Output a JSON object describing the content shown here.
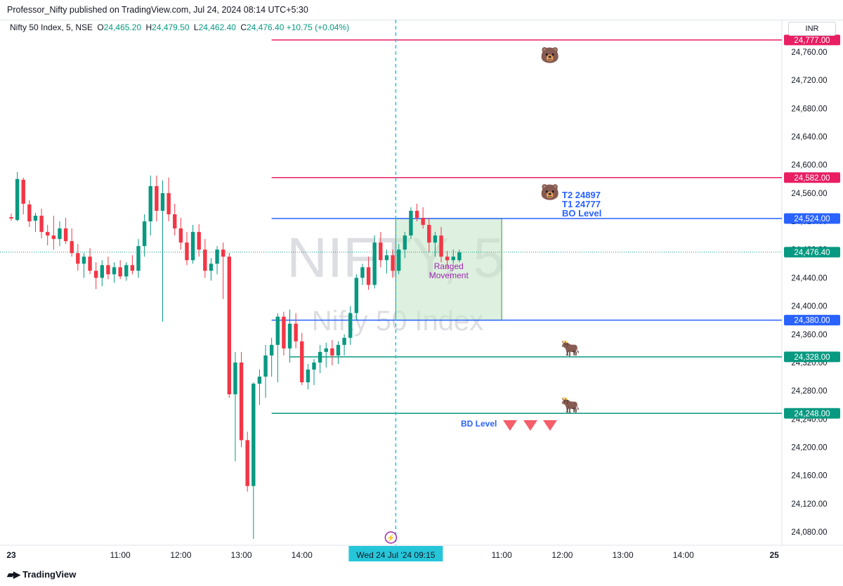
{
  "header": {
    "published": "Professor_Nifty published on TradingView.com, Jul 24, 2024 08:14 UTC+5:30"
  },
  "legend": {
    "symbol": "Nifty 50 Index, 5, NSE",
    "o_label": "O",
    "o": "24,465.20",
    "h_label": "H",
    "h": "24,479.50",
    "l_label": "L",
    "l": "24,462.40",
    "c_label": "C",
    "c": "24,476.40",
    "change": "+10.75 (+0.04%)"
  },
  "currency": "INR",
  "watermark": {
    "ticker": "NIFTY, 5",
    "name": "Nifty 50 Index"
  },
  "colors": {
    "up": "#089981",
    "down": "#f23645",
    "resistance": "#e91e63",
    "breakout": "#2962ff",
    "support": "#089981",
    "box_fill": "#c8e6c9",
    "box_border": "#4caf50",
    "crosshair": "#26c6da"
  },
  "chart_data": {
    "type": "candlestick",
    "ylim": [
      24060,
      24790
    ],
    "y_ticks": [
      24080,
      24120,
      24160,
      24200,
      24240,
      24280,
      24320,
      24360,
      24400,
      24440,
      24480,
      24520,
      24560,
      24600,
      24640,
      24680,
      24720,
      24760
    ],
    "y_tick_labels": [
      "24,080.00",
      "24,120.00",
      "24,160.00",
      "24,200.00",
      "24,240.00",
      "24,280.00",
      "24,320.00",
      "24,360.00",
      "24,400.00",
      "24,440.00",
      "24,480.00",
      "24,520.00",
      "24,560.00",
      "24,600.00",
      "24,640.00",
      "24,680.00",
      "24,720.00",
      "24,760.00"
    ],
    "x_labels": [
      {
        "label": "23",
        "bar": 0,
        "bold": true
      },
      {
        "label": "11:00",
        "bar": 18
      },
      {
        "label": "12:00",
        "bar": 28
      },
      {
        "label": "13:00",
        "bar": 38
      },
      {
        "label": "14:00",
        "bar": 48
      },
      {
        "label": "11:00",
        "bar": 81
      },
      {
        "label": "12:00",
        "bar": 91
      },
      {
        "label": "13:00",
        "bar": 101
      },
      {
        "label": "14:00",
        "bar": 111
      },
      {
        "label": "25",
        "bar": 126,
        "bold": true
      }
    ],
    "candles": [
      [
        24526,
        24531,
        24521,
        24524
      ],
      [
        24522,
        24590,
        24520,
        24580
      ],
      [
        24579,
        24582,
        24530,
        24545
      ],
      [
        24544,
        24550,
        24512,
        24520
      ],
      [
        24521,
        24532,
        24505,
        24528
      ],
      [
        24528,
        24538,
        24496,
        24505
      ],
      [
        24505,
        24515,
        24486,
        24500
      ],
      [
        24500,
        24528,
        24480,
        24495
      ],
      [
        24495,
        24520,
        24485,
        24510
      ],
      [
        24510,
        24525,
        24488,
        24492
      ],
      [
        24492,
        24510,
        24470,
        24475
      ],
      [
        24475,
        24488,
        24450,
        24460
      ],
      [
        24460,
        24475,
        24440,
        24470
      ],
      [
        24470,
        24482,
        24445,
        24450
      ],
      [
        24450,
        24462,
        24424,
        24440
      ],
      [
        24440,
        24465,
        24428,
        24458
      ],
      [
        24458,
        24470,
        24438,
        24445
      ],
      [
        24445,
        24462,
        24433,
        24455
      ],
      [
        24455,
        24465,
        24438,
        24442
      ],
      [
        24442,
        24462,
        24436,
        24458
      ],
      [
        24458,
        24472,
        24445,
        24450
      ],
      [
        24450,
        24495,
        24440,
        24485
      ],
      [
        24485,
        24530,
        24470,
        24520
      ],
      [
        24520,
        24585,
        24500,
        24570
      ],
      [
        24570,
        24585,
        24520,
        24535
      ],
      [
        24535,
        24578,
        24378,
        24560
      ],
      [
        24560,
        24582,
        24520,
        24530
      ],
      [
        24530,
        24545,
        24500,
        24510
      ],
      [
        24510,
        24525,
        24480,
        24490
      ],
      [
        24490,
        24505,
        24458,
        24465
      ],
      [
        24465,
        24515,
        24460,
        24505
      ],
      [
        24505,
        24516,
        24470,
        24480
      ],
      [
        24480,
        24495,
        24440,
        24450
      ],
      [
        24450,
        24468,
        24436,
        24460
      ],
      [
        24460,
        24485,
        24445,
        24480
      ],
      [
        24480,
        24490,
        24410,
        24470
      ],
      [
        24470,
        24475,
        24270,
        24275
      ],
      [
        24275,
        24335,
        24180,
        24320
      ],
      [
        24320,
        24335,
        24200,
        24210
      ],
      [
        24210,
        24222,
        24137,
        24145
      ],
      [
        24145,
        24292,
        24070,
        24290
      ],
      [
        24290,
        24310,
        24260,
        24300
      ],
      [
        24300,
        24345,
        24270,
        24330
      ],
      [
        24330,
        24355,
        24300,
        24345
      ],
      [
        24345,
        24390,
        24292,
        24385
      ],
      [
        24385,
        24392,
        24330,
        24340
      ],
      [
        24340,
        24395,
        24320,
        24375
      ],
      [
        24375,
        24390,
        24340,
        24350
      ],
      [
        24350,
        24362,
        24288,
        24292
      ],
      [
        24292,
        24318,
        24282,
        24310
      ],
      [
        24310,
        24325,
        24288,
        24320
      ],
      [
        24320,
        24345,
        24305,
        24335
      ],
      [
        24335,
        24348,
        24313,
        24340
      ],
      [
        24340,
        24352,
        24316,
        24330
      ],
      [
        24330,
        24350,
        24318,
        24345
      ],
      [
        24345,
        24360,
        24330,
        24355
      ],
      [
        24355,
        24400,
        24345,
        24390
      ],
      [
        24390,
        24445,
        24380,
        24440
      ],
      [
        24440,
        24460,
        24430,
        24455
      ],
      [
        24455,
        24470,
        24423,
        24430
      ],
      [
        24430,
        24500,
        24425,
        24490
      ],
      [
        24490,
        24505,
        24455,
        24465
      ],
      [
        24465,
        24480,
        24446,
        24472
      ],
      [
        24472,
        24480,
        24440,
        24450
      ],
      [
        24450,
        24488,
        24445,
        24480
      ],
      [
        24480,
        24505,
        24468,
        24500
      ],
      [
        24500,
        24540,
        24495,
        24535
      ],
      [
        24535,
        24545,
        24520,
        24525
      ],
      [
        24525,
        24540,
        24510,
        24515
      ],
      [
        24515,
        24525,
        24476,
        24490
      ],
      [
        24490,
        24505,
        24470,
        24500
      ],
      [
        24500,
        24512,
        24462,
        24470
      ],
      [
        24470,
        24478,
        24452,
        24465
      ],
      [
        24465,
        24480,
        24460,
        24470
      ],
      [
        24465,
        24480,
        24462,
        24476
      ]
    ],
    "current_price": 24476.4,
    "current_label": "24,476.40",
    "levels": [
      {
        "name": "top-resistance",
        "value": 24777,
        "label": "24,777.00",
        "color": "#e91e63",
        "start_bar": 43
      },
      {
        "name": "upper-resistance",
        "value": 24582,
        "label": "24,582.00",
        "color": "#e91e63",
        "start_bar": 43
      },
      {
        "name": "bo-level",
        "value": 24524,
        "label": "24,524.00",
        "color": "#2962ff",
        "start_bar": 43
      },
      {
        "name": "range-bottom",
        "value": 24380,
        "label": "24,380.00",
        "color": "#2962ff",
        "start_bar": 43
      },
      {
        "name": "support-1",
        "value": 24328,
        "label": "24,328.00",
        "color": "#089981",
        "start_bar": 46
      },
      {
        "name": "bd-level",
        "value": 24248,
        "label": "24,248.00",
        "color": "#089981",
        "start_bar": 43
      }
    ],
    "range_box": {
      "bar_start": 63.5,
      "bar_end": 81,
      "top": 24524,
      "bottom": 24380,
      "label_line1": "Ranged",
      "label_line2": "Movement"
    },
    "crosshair": {
      "bar": 63.5,
      "label": "Wed 24 Jul '24   09:15"
    },
    "annotations": {
      "t2": "T2 24897",
      "t1": "T1 24777",
      "bo": "BO Level",
      "bd": "BD Level",
      "bear_emoji": "🐻",
      "bull_emoji": "🐂"
    }
  }
}
